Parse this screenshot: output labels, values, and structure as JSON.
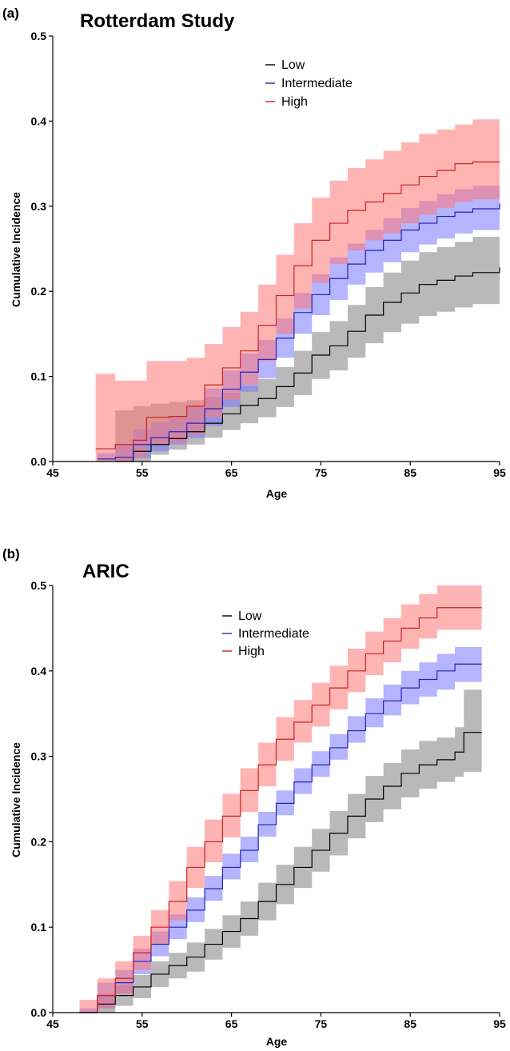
{
  "chart_data": [
    {
      "type": "line",
      "panel_letter": "(a)",
      "title": "Rotterdam Study",
      "xlabel": "Age",
      "ylabel": "Cumulative Incidence",
      "xlim": [
        45,
        95
      ],
      "ylim": [
        0,
        0.5
      ],
      "xticks": [
        45,
        55,
        65,
        75,
        85,
        95
      ],
      "yticks": [
        0.0,
        0.1,
        0.2,
        0.3,
        0.4,
        0.5
      ],
      "ytick_labels": [
        "0.0",
        "0.1",
        "0.2",
        "0.3",
        "0.4",
        "0.5"
      ],
      "legend_position": "top-center",
      "grid": false,
      "confidence_bands": true,
      "series": [
        {
          "name": "Low",
          "line_color": "#000000",
          "band_color": "#808080",
          "x": [
            52,
            54,
            56,
            58,
            60,
            62,
            64,
            66,
            68,
            70,
            72,
            74,
            76,
            78,
            80,
            82,
            84,
            86,
            88,
            90,
            92,
            95
          ],
          "y": [
            0.0,
            0.012,
            0.02,
            0.027,
            0.035,
            0.045,
            0.056,
            0.066,
            0.074,
            0.088,
            0.104,
            0.125,
            0.136,
            0.153,
            0.172,
            0.187,
            0.198,
            0.208,
            0.213,
            0.218,
            0.222,
            0.228
          ],
          "lower": [
            0.0,
            0.0,
            0.008,
            0.014,
            0.02,
            0.028,
            0.037,
            0.045,
            0.052,
            0.064,
            0.078,
            0.097,
            0.107,
            0.122,
            0.139,
            0.152,
            0.162,
            0.171,
            0.176,
            0.181,
            0.185,
            0.19
          ],
          "upper": [
            0.06,
            0.065,
            0.068,
            0.07,
            0.072,
            0.076,
            0.081,
            0.089,
            0.097,
            0.111,
            0.13,
            0.152,
            0.165,
            0.184,
            0.205,
            0.222,
            0.236,
            0.246,
            0.252,
            0.258,
            0.264,
            0.275
          ]
        },
        {
          "name": "Intermediate",
          "line_color": "#2222bb",
          "band_color": "#7777ff",
          "x": [
            50,
            52,
            54,
            56,
            58,
            60,
            62,
            64,
            66,
            68,
            70,
            72,
            74,
            76,
            78,
            80,
            82,
            84,
            86,
            88,
            90,
            92,
            95
          ],
          "y": [
            0.003,
            0.005,
            0.02,
            0.028,
            0.035,
            0.045,
            0.062,
            0.085,
            0.105,
            0.12,
            0.145,
            0.175,
            0.196,
            0.215,
            0.232,
            0.248,
            0.26,
            0.272,
            0.28,
            0.288,
            0.293,
            0.297,
            0.303
          ],
          "lower": [
            0.0,
            0.0,
            0.004,
            0.012,
            0.02,
            0.028,
            0.042,
            0.064,
            0.082,
            0.098,
            0.122,
            0.15,
            0.172,
            0.19,
            0.208,
            0.222,
            0.234,
            0.246,
            0.255,
            0.262,
            0.268,
            0.272,
            0.278
          ],
          "upper": [
            0.01,
            0.02,
            0.038,
            0.046,
            0.053,
            0.065,
            0.086,
            0.107,
            0.127,
            0.143,
            0.168,
            0.198,
            0.22,
            0.24,
            0.256,
            0.272,
            0.286,
            0.298,
            0.306,
            0.314,
            0.32,
            0.324,
            0.33
          ]
        },
        {
          "name": "High",
          "line_color": "#cc2222",
          "band_color": "#ff7777",
          "x": [
            49.8,
            52,
            54,
            55.5,
            58,
            60,
            62,
            64,
            66,
            68,
            70,
            72,
            74,
            76,
            78,
            80,
            82,
            84,
            86,
            88,
            90,
            92,
            95
          ],
          "y": [
            0.015,
            0.02,
            0.025,
            0.052,
            0.053,
            0.065,
            0.09,
            0.11,
            0.13,
            0.16,
            0.195,
            0.23,
            0.26,
            0.28,
            0.295,
            0.305,
            0.315,
            0.325,
            0.335,
            0.342,
            0.35,
            0.352,
            0.352
          ],
          "lower": [
            0.0,
            0.0,
            0.005,
            0.02,
            0.022,
            0.032,
            0.052,
            0.072,
            0.09,
            0.118,
            0.15,
            0.18,
            0.21,
            0.232,
            0.248,
            0.26,
            0.268,
            0.28,
            0.29,
            0.298,
            0.305,
            0.308,
            0.31
          ],
          "upper": [
            0.103,
            0.095,
            0.095,
            0.118,
            0.118,
            0.122,
            0.138,
            0.158,
            0.176,
            0.208,
            0.243,
            0.28,
            0.31,
            0.33,
            0.345,
            0.355,
            0.365,
            0.375,
            0.385,
            0.39,
            0.396,
            0.402,
            0.403
          ]
        }
      ]
    },
    {
      "type": "line",
      "panel_letter": "(b)",
      "title": "ARIC",
      "xlabel": "Age",
      "ylabel": "Cumulative Incidence",
      "xlim": [
        45,
        95
      ],
      "ylim": [
        0,
        0.5
      ],
      "xticks": [
        45,
        55,
        65,
        75,
        85,
        95
      ],
      "yticks": [
        0.0,
        0.1,
        0.2,
        0.3,
        0.4,
        0.5
      ],
      "ytick_labels": [
        "0.0",
        "0.1",
        "0.2",
        "0.3",
        "0.4",
        "0.5"
      ],
      "legend_position": "top-center",
      "grid": false,
      "confidence_bands": true,
      "series": [
        {
          "name": "Low",
          "line_color": "#000000",
          "band_color": "#808080",
          "x": [
            48,
            50,
            52,
            54,
            56,
            58,
            60,
            62,
            64,
            66,
            68,
            70,
            72,
            74,
            76,
            78,
            80,
            82,
            84,
            86,
            88,
            90,
            91,
            93
          ],
          "y": [
            0.0,
            0.01,
            0.02,
            0.03,
            0.045,
            0.055,
            0.065,
            0.08,
            0.095,
            0.11,
            0.13,
            0.15,
            0.17,
            0.19,
            0.21,
            0.23,
            0.25,
            0.265,
            0.28,
            0.29,
            0.296,
            0.305,
            0.328,
            0.328
          ],
          "lower": [
            0.0,
            0.0,
            0.008,
            0.017,
            0.03,
            0.04,
            0.048,
            0.062,
            0.076,
            0.09,
            0.108,
            0.127,
            0.146,
            0.165,
            0.184,
            0.204,
            0.223,
            0.238,
            0.252,
            0.262,
            0.27,
            0.276,
            0.282,
            0.282
          ],
          "upper": [
            0.0,
            0.022,
            0.033,
            0.044,
            0.06,
            0.07,
            0.082,
            0.098,
            0.114,
            0.13,
            0.152,
            0.173,
            0.194,
            0.215,
            0.236,
            0.256,
            0.277,
            0.292,
            0.308,
            0.318,
            0.322,
            0.334,
            0.378,
            0.378
          ]
        },
        {
          "name": "Intermediate",
          "line_color": "#2222bb",
          "band_color": "#7777ff",
          "x": [
            48,
            50,
            52,
            54,
            56,
            58,
            60,
            62,
            64,
            66,
            68,
            70,
            72,
            74,
            76,
            78,
            80,
            82,
            84,
            86,
            88,
            90,
            93
          ],
          "y": [
            0.0,
            0.02,
            0.035,
            0.06,
            0.08,
            0.1,
            0.12,
            0.145,
            0.17,
            0.19,
            0.22,
            0.245,
            0.27,
            0.29,
            0.31,
            0.33,
            0.35,
            0.365,
            0.38,
            0.39,
            0.4,
            0.408,
            0.408
          ],
          "lower": [
            0.0,
            0.005,
            0.022,
            0.045,
            0.066,
            0.086,
            0.106,
            0.131,
            0.156,
            0.176,
            0.206,
            0.231,
            0.256,
            0.276,
            0.296,
            0.316,
            0.334,
            0.348,
            0.361,
            0.37,
            0.378,
            0.387,
            0.388
          ],
          "upper": [
            0.005,
            0.035,
            0.05,
            0.075,
            0.095,
            0.115,
            0.135,
            0.16,
            0.186,
            0.206,
            0.235,
            0.26,
            0.286,
            0.306,
            0.326,
            0.347,
            0.368,
            0.384,
            0.4,
            0.41,
            0.42,
            0.428,
            0.428
          ]
        },
        {
          "name": "High",
          "line_color": "#cc2222",
          "band_color": "#ff7777",
          "x": [
            48,
            50,
            52,
            54,
            56,
            58,
            60,
            62,
            64,
            66,
            68,
            70,
            72,
            74,
            76,
            78,
            80,
            82,
            84,
            86,
            88,
            93
          ],
          "y": [
            0.0,
            0.02,
            0.04,
            0.07,
            0.1,
            0.13,
            0.17,
            0.2,
            0.23,
            0.26,
            0.29,
            0.32,
            0.34,
            0.36,
            0.38,
            0.4,
            0.42,
            0.435,
            0.45,
            0.462,
            0.474,
            0.474
          ],
          "lower": [
            0.0,
            0.005,
            0.022,
            0.05,
            0.08,
            0.108,
            0.146,
            0.176,
            0.205,
            0.235,
            0.265,
            0.295,
            0.316,
            0.335,
            0.355,
            0.375,
            0.395,
            0.41,
            0.426,
            0.438,
            0.448,
            0.448
          ],
          "upper": [
            0.015,
            0.04,
            0.06,
            0.09,
            0.12,
            0.154,
            0.194,
            0.226,
            0.256,
            0.286,
            0.316,
            0.346,
            0.366,
            0.386,
            0.406,
            0.426,
            0.446,
            0.462,
            0.478,
            0.49,
            0.5,
            0.5
          ]
        }
      ]
    }
  ]
}
